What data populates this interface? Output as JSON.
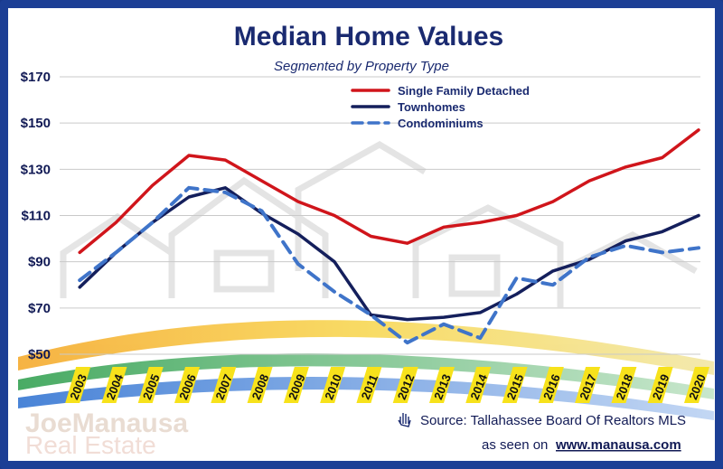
{
  "chart_data": {
    "type": "line",
    "title": "Median Home Values",
    "subtitle": "Segmented by Property Type",
    "xlabel": "",
    "ylabel": "",
    "categories": [
      "2003",
      "2004",
      "2005",
      "2006",
      "2007",
      "2008",
      "2009",
      "2010",
      "2011",
      "2012",
      "2013",
      "2014",
      "2015",
      "2016",
      "2017",
      "2018",
      "2019",
      "2020"
    ],
    "y_ticks": [
      "$50",
      "$70",
      "$90",
      "$110",
      "$130",
      "$150",
      "$170"
    ],
    "ylim": [
      50,
      170
    ],
    "grid": true,
    "legend_position": "top-center",
    "series": [
      {
        "name": "Single Family Detached",
        "color": "#d0151b",
        "style": "solid",
        "values": [
          94,
          107,
          123,
          136,
          134,
          125,
          116,
          110,
          101,
          98,
          105,
          107,
          110,
          116,
          125,
          131,
          135,
          147
        ]
      },
      {
        "name": "Townhomes",
        "color": "#141f5c",
        "style": "solid",
        "values": [
          79,
          94,
          107,
          118,
          122,
          111,
          102,
          90,
          67,
          65,
          66,
          68,
          76,
          86,
          91,
          99,
          103,
          110
        ]
      },
      {
        "name": "Condominiums",
        "color": "#3f74c9",
        "style": "dashed",
        "values": [
          82,
          94,
          107,
          122,
          120,
          112,
          89,
          77,
          67,
          55,
          63,
          57,
          83,
          80,
          92,
          97,
          94,
          96
        ]
      }
    ]
  },
  "source": {
    "text": "Source: Tallahassee Board Of Realtors MLS",
    "seen_on": "as seen on",
    "site": "www.manausa.com",
    "icon": "hand-icon"
  },
  "logo": {
    "line1": "JoeManausa",
    "line2": "Real Estate"
  }
}
